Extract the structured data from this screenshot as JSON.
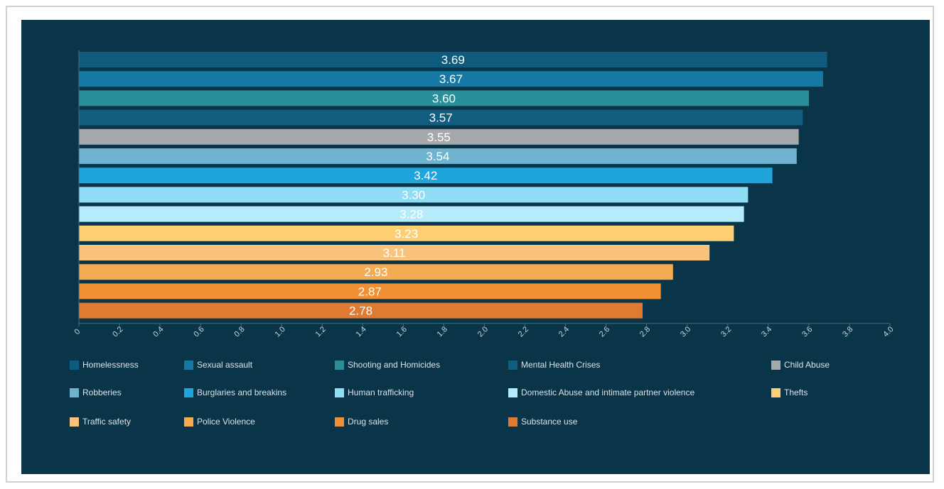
{
  "chart_data": {
    "type": "bar",
    "orientation": "horizontal",
    "title": "",
    "xlabel": "",
    "ylabel": "",
    "xlim": [
      0,
      4.0
    ],
    "x_ticks": [
      "0",
      "0.2",
      "0.4",
      "0.6",
      "0.8",
      "1.0",
      "1.2",
      "1.4",
      "1.6",
      "1.8",
      "2.0",
      "2.2",
      "2.4",
      "2.6",
      "2.8",
      "3.0",
      "3.2",
      "3.4",
      "3.6",
      "3.8",
      "4.0"
    ],
    "grid": false,
    "legend_position": "bottom",
    "categories": [
      "Homelessness",
      "Sexual assault",
      "Shooting and Homicides",
      "Mental Health Crises",
      "Child Abuse",
      "Robberies",
      "Burglaries and breakins",
      "Human trafficking",
      "Domestic Abuse and intimate partner violence",
      "Thefts",
      "Traffic safety",
      "Police Violence",
      "Drug sales",
      "Substance use"
    ],
    "values": [
      3.69,
      3.67,
      3.6,
      3.57,
      3.55,
      3.54,
      3.42,
      3.3,
      3.28,
      3.23,
      3.11,
      2.93,
      2.87,
      2.78
    ],
    "value_labels": [
      "3.69",
      "3.67",
      "3.60",
      "3.57",
      "3.55",
      "3.54",
      "3.42",
      "3.30",
      "3.28",
      "3.23",
      "3.11",
      "2.93",
      "2.87",
      "2.78"
    ],
    "colors": [
      "#0e5b7e",
      "#1678a3",
      "#2a8f99",
      "#105d7f",
      "#a6a9ab",
      "#6fb3cf",
      "#20a4dc",
      "#8fdcf5",
      "#b5ebfa",
      "#fdcf72",
      "#f9c37e",
      "#f5ab52",
      "#f08f34",
      "#df7a30"
    ]
  }
}
